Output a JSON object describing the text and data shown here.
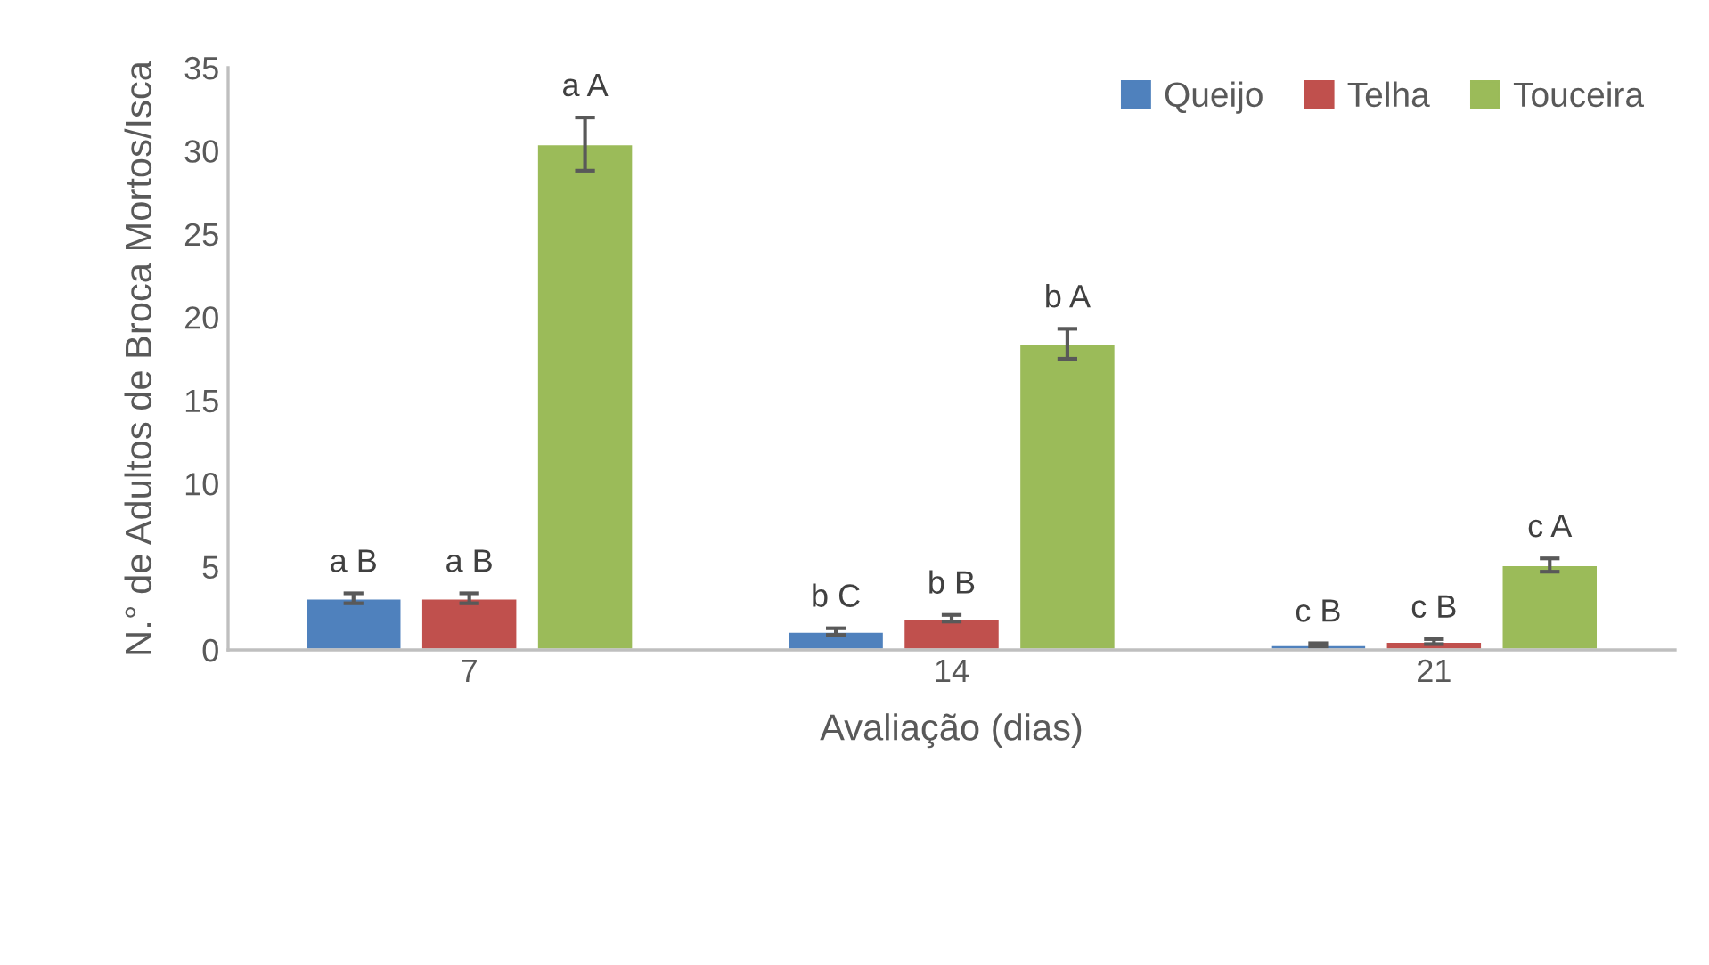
{
  "chart_data": {
    "type": "bar",
    "xlabel": "Avaliação (dias)",
    "ylabel": "N.° de Adultos de Broca Mortos/Isca",
    "categories": [
      "7",
      "14",
      "21"
    ],
    "series": [
      {
        "name": "Queijo",
        "color": "#4f81bd",
        "values": [
          3.1,
          1.1,
          0.3
        ],
        "errors": [
          0.3,
          0.2,
          0.1
        ],
        "value_labels": [
          "a B",
          "b C",
          "c B"
        ]
      },
      {
        "name": "Telha",
        "color": "#c0504d",
        "values": [
          3.1,
          1.9,
          0.5
        ],
        "errors": [
          0.3,
          0.2,
          0.15
        ],
        "value_labels": [
          "a B",
          "b B",
          "c B"
        ]
      },
      {
        "name": "Touceira",
        "color": "#9bbb59",
        "values": [
          30.4,
          18.4,
          5.1
        ],
        "errors": [
          1.6,
          0.9,
          0.4
        ],
        "value_labels": [
          "a A",
          "b A",
          "c A"
        ]
      }
    ],
    "ylim": [
      0,
      35
    ],
    "yticks": [
      0,
      5,
      10,
      15,
      20,
      25,
      30,
      35
    ],
    "grid": false,
    "legend": "top right"
  }
}
